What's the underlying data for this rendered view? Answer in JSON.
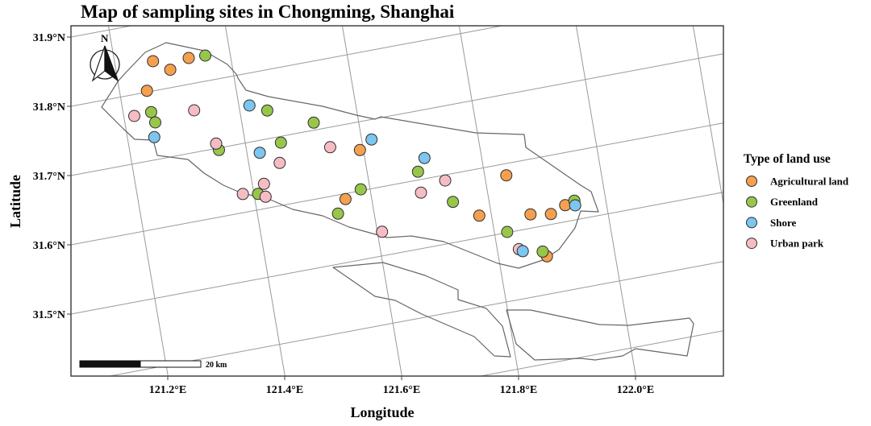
{
  "title": "Map of  sampling sites in Chongming, Shanghai",
  "compass_label": "N",
  "scale_bar_label": "20 km",
  "chart_data": {
    "type": "scatter",
    "title": "Map of  sampling sites in Chongming, Shanghai",
    "xlabel": "Longitude",
    "ylabel": "Latitude",
    "lat_ticks": [
      {
        "value": 31.9,
        "label": "31.9°N"
      },
      {
        "value": 31.8,
        "label": "31.8°N"
      },
      {
        "value": 31.7,
        "label": "31.7°N"
      },
      {
        "value": 31.6,
        "label": "31.6°N"
      },
      {
        "value": 31.5,
        "label": "31.5°N"
      }
    ],
    "lon_ticks": [
      {
        "value": 121.2,
        "label": "121.2°E"
      },
      {
        "value": 121.4,
        "label": "121.4°E"
      },
      {
        "value": 121.6,
        "label": "121.6°E"
      },
      {
        "value": 121.8,
        "label": "121.8°E"
      },
      {
        "value": 122.0,
        "label": "122.0°E"
      }
    ],
    "grid": true,
    "legend": {
      "title": "Type of land use",
      "placement": "right",
      "entries": [
        {
          "key": "agricultural",
          "label": "Agricultural land",
          "color": "#f5a04f"
        },
        {
          "key": "greenland",
          "label": "Greenland",
          "color": "#98c64b"
        },
        {
          "key": "shore",
          "label": "Shore",
          "color": "#7cc6ef"
        },
        {
          "key": "urban",
          "label": "Urban park",
          "color": "#f6bcc4"
        }
      ]
    },
    "series": [
      {
        "key": "agricultural",
        "points": [
          [
            121.266,
            31.843
          ],
          [
            121.293,
            31.826
          ],
          [
            121.328,
            31.838
          ],
          [
            121.247,
            31.802
          ],
          [
            121.594,
            31.659
          ],
          [
            121.837,
            31.583
          ],
          [
            121.555,
            31.592
          ],
          [
            121.779,
            31.532
          ],
          [
            121.867,
            31.52
          ],
          [
            121.902,
            31.515
          ],
          [
            121.929,
            31.524
          ],
          [
            121.883,
            31.455
          ]
        ]
      },
      {
        "key": "greenland",
        "points": [
          [
            121.357,
            31.837
          ],
          [
            121.248,
            31.77
          ],
          [
            121.252,
            31.754
          ],
          [
            121.447,
            31.741
          ],
          [
            121.523,
            31.711
          ],
          [
            121.461,
            31.691
          ],
          [
            121.353,
            31.697
          ],
          [
            121.407,
            31.623
          ],
          [
            121.687,
            31.612
          ],
          [
            121.584,
            31.602
          ],
          [
            121.738,
            31.559
          ],
          [
            121.538,
            31.573
          ],
          [
            121.946,
            31.528
          ],
          [
            121.822,
            31.501
          ],
          [
            121.877,
            31.463
          ]
        ]
      },
      {
        "key": "urban",
        "points": [
          [
            121.218,
            31.769
          ],
          [
            121.322,
            31.761
          ],
          [
            121.35,
            31.707
          ],
          [
            121.453,
            31.662
          ],
          [
            121.42,
            31.636
          ],
          [
            121.381,
            31.627
          ],
          [
            121.419,
            31.617
          ],
          [
            121.544,
            31.671
          ],
          [
            121.731,
            31.592
          ],
          [
            121.686,
            31.581
          ],
          [
            121.608,
            31.535
          ],
          [
            121.837,
            31.473
          ]
        ]
      },
      {
        "key": "shore",
        "points": [
          [
            121.246,
            31.733
          ],
          [
            121.418,
            31.753
          ],
          [
            121.422,
            31.682
          ],
          [
            121.617,
            31.671
          ],
          [
            121.702,
            31.63
          ],
          [
            121.946,
            31.521
          ],
          [
            121.843,
            31.469
          ]
        ]
      }
    ]
  }
}
